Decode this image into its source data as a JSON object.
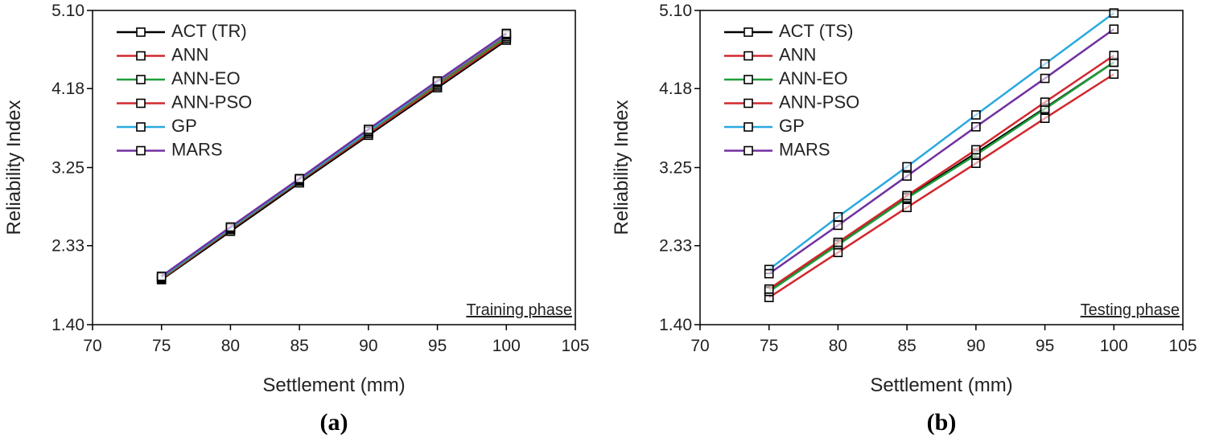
{
  "chart_data": [
    {
      "type": "line",
      "caption": "(a)",
      "annotation": "Training phase",
      "xlabel": "Settlement (mm)",
      "ylabel": "Reliability Index",
      "x": [
        75,
        80,
        85,
        90,
        95,
        100
      ],
      "xlim": [
        70,
        105
      ],
      "xticks": [
        70,
        75,
        80,
        85,
        90,
        95,
        100,
        105
      ],
      "ylim": [
        1.4,
        5.1
      ],
      "yticks": [
        {
          "value": 1.4,
          "label": "1.40"
        },
        2.33,
        3.25,
        4.18,
        {
          "value": 5.1,
          "label": "5.10"
        }
      ],
      "legend": "upper left",
      "series": [
        {
          "name": "ACT (TR)",
          "color": "#000000",
          "values": [
            1.93,
            2.5,
            3.07,
            3.63,
            4.19,
            4.75
          ]
        },
        {
          "name": "ANN",
          "color": "#d1282e",
          "values": [
            1.94,
            2.52,
            3.09,
            3.65,
            4.21,
            4.77
          ]
        },
        {
          "name": "ANN-EO",
          "color": "#1f9e3a",
          "values": [
            1.95,
            2.53,
            3.1,
            3.67,
            4.23,
            4.79
          ]
        },
        {
          "name": "ANN-PSO",
          "color": "#d1282e",
          "values": [
            1.96,
            2.54,
            3.11,
            3.68,
            4.25,
            4.81
          ]
        },
        {
          "name": "GP",
          "color": "#2aa9e0",
          "values": [
            1.96,
            2.54,
            3.11,
            3.68,
            4.26,
            4.82
          ]
        },
        {
          "name": "MARS",
          "color": "#7030a0",
          "values": [
            1.97,
            2.55,
            3.12,
            3.7,
            4.27,
            4.83
          ]
        }
      ]
    },
    {
      "type": "line",
      "caption": "(b)",
      "annotation": "Testing phase",
      "xlabel": "Settlement (mm)",
      "ylabel": "Reliability Index",
      "x": [
        75,
        80,
        85,
        90,
        95,
        100
      ],
      "xlim": [
        70,
        105
      ],
      "xticks": [
        70,
        75,
        80,
        85,
        90,
        95,
        100,
        105
      ],
      "ylim": [
        1.4,
        5.1
      ],
      "yticks": [
        {
          "value": 1.4,
          "label": "1.40"
        },
        2.33,
        3.25,
        4.18,
        {
          "value": 5.1,
          "label": "5.10"
        }
      ],
      "legend": "upper left",
      "series": [
        {
          "name": "ACT (TS)",
          "color": "#000000",
          "values": [
            1.8,
            2.35,
            2.9,
            3.42,
            3.95,
            4.49
          ]
        },
        {
          "name": "ANN",
          "color": "#d1282e",
          "values": [
            1.72,
            2.25,
            2.78,
            3.3,
            3.83,
            4.35
          ]
        },
        {
          "name": "ANN-EO",
          "color": "#1f9e3a",
          "values": [
            1.79,
            2.34,
            2.89,
            3.4,
            3.94,
            4.49
          ]
        },
        {
          "name": "ANN-PSO",
          "color": "#d1282e",
          "values": [
            1.82,
            2.37,
            2.92,
            3.46,
            4.02,
            4.57
          ]
        },
        {
          "name": "GP",
          "color": "#2aa9e0",
          "values": [
            2.05,
            2.67,
            3.26,
            3.87,
            4.47,
            5.07
          ]
        },
        {
          "name": "MARS",
          "color": "#7030a0",
          "values": [
            2.0,
            2.57,
            3.15,
            3.73,
            4.3,
            4.88
          ]
        }
      ]
    }
  ]
}
